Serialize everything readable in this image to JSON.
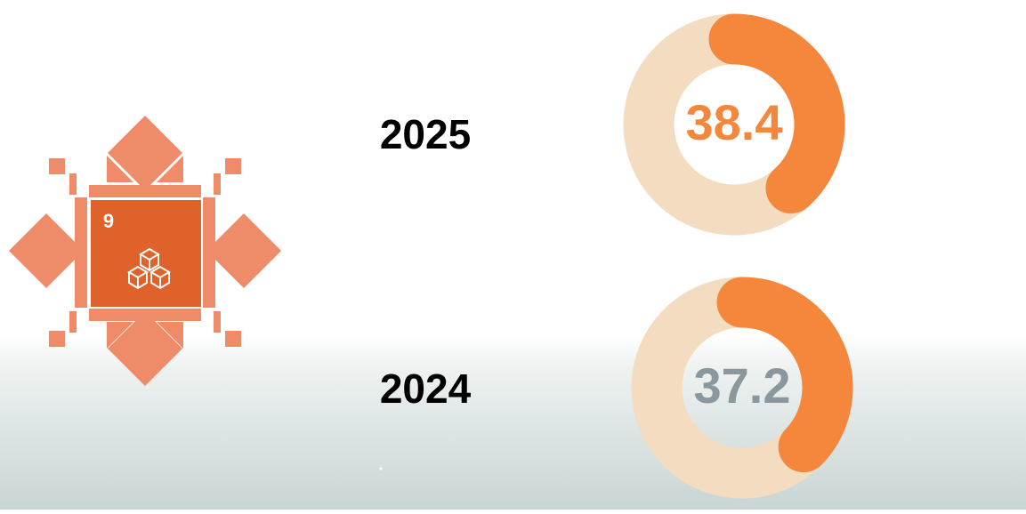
{
  "logo": {
    "label": "9"
  },
  "chart_data": [
    {
      "type": "donut",
      "title": "2025",
      "values": [
        38.4
      ],
      "ylim": [
        0,
        100
      ],
      "color": "#f4873c",
      "track_color": "#f3dcc0",
      "label_color": "#f4873c"
    },
    {
      "type": "donut",
      "title": "2024",
      "values": [
        37.2
      ],
      "ylim": [
        0,
        100
      ],
      "color": "#f4873c",
      "track_color": "#f3dcc0",
      "label_color": "#8a979c"
    }
  ]
}
